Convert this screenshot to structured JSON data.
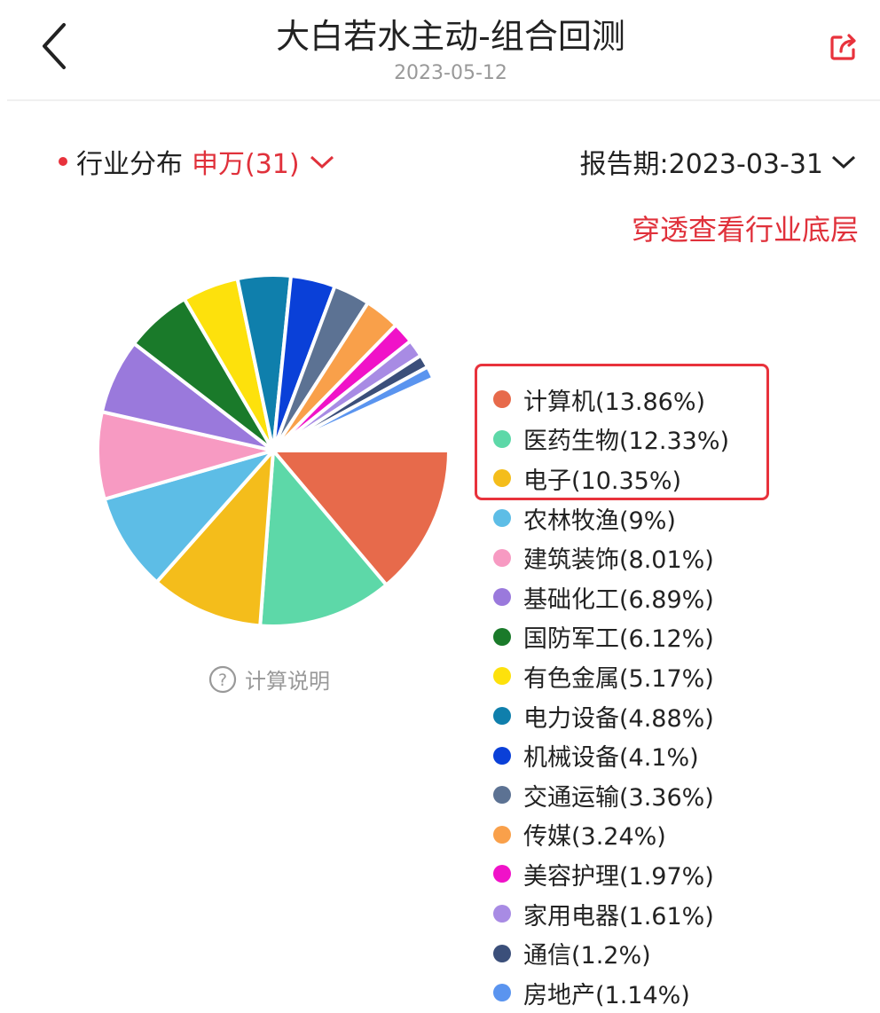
{
  "header": {
    "title": "大白若水主动-组合回测",
    "date": "2023-05-12",
    "back_icon": "chevron-left-icon",
    "share_icon": "share-icon",
    "share_color": "#e8323c"
  },
  "filters": {
    "label": "行业分布",
    "classification": "申万(31)",
    "period": "报告期:2023-03-31",
    "drill_link": "穿透查看行业底层"
  },
  "calc_note": "计算说明",
  "chart_data": {
    "type": "pie",
    "start": "3 o'clock, clockwise",
    "legend_placement": "right",
    "highlighted": [
      "计算机",
      "医药生物",
      "电子"
    ],
    "slices": [
      {
        "name": "计算机",
        "value": 13.86,
        "label": "计算机(13.86%)",
        "color": "#e76a4b"
      },
      {
        "name": "医药生物",
        "value": 12.33,
        "label": "医药生物(12.33%)",
        "color": "#5dd8a8"
      },
      {
        "name": "电子",
        "value": 10.35,
        "label": "电子(10.35%)",
        "color": "#f4bd1b"
      },
      {
        "name": "农林牧渔",
        "value": 9,
        "label": "农林牧渔(9%)",
        "color": "#5dbde6"
      },
      {
        "name": "建筑装饰",
        "value": 8.01,
        "label": "建筑装饰(8.01%)",
        "color": "#f79ac2"
      },
      {
        "name": "基础化工",
        "value": 6.89,
        "label": "基础化工(6.89%)",
        "color": "#9a79dc"
      },
      {
        "name": "国防军工",
        "value": 6.12,
        "label": "国防军工(6.12%)",
        "color": "#1a7a2a"
      },
      {
        "name": "有色金属",
        "value": 5.17,
        "label": "有色金属(5.17%)",
        "color": "#fde10c"
      },
      {
        "name": "电力设备",
        "value": 4.88,
        "label": "电力设备(4.88%)",
        "color": "#0f7fac"
      },
      {
        "name": "机械设备",
        "value": 4.1,
        "label": "机械设备(4.1%)",
        "color": "#0a40d8"
      },
      {
        "name": "交通运输",
        "value": 3.36,
        "label": "交通运输(3.36%)",
        "color": "#5c7293"
      },
      {
        "name": "传媒",
        "value": 3.24,
        "label": "传媒(3.24%)",
        "color": "#f9a04a"
      },
      {
        "name": "美容护理",
        "value": 1.97,
        "label": "美容护理(1.97%)",
        "color": "#f012c8"
      },
      {
        "name": "家用电器",
        "value": 1.61,
        "label": "家用电器(1.61%)",
        "color": "#a88be4"
      },
      {
        "name": "通信",
        "value": 1.2,
        "label": "通信(1.2%)",
        "color": "#3b4f7a"
      },
      {
        "name": "房地产",
        "value": 1.14,
        "label": "房地产(1.14%)",
        "color": "#5a94ef"
      }
    ]
  }
}
